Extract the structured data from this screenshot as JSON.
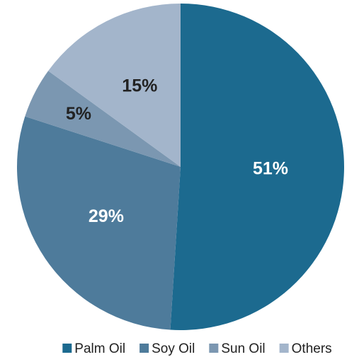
{
  "chart_data": {
    "type": "pie",
    "categories": [
      "Palm Oil",
      "Soy Oil",
      "Sun Oil",
      "Others"
    ],
    "values": [
      51,
      29,
      5,
      15
    ],
    "value_labels": [
      "51%",
      "29%",
      "5%",
      "15%"
    ],
    "colors": [
      "#1c6a8f",
      "#4e7b9b",
      "#7b97b1",
      "#a3b5cb"
    ],
    "label_colors": [
      "#ffffff",
      "#ffffff",
      "#222222",
      "#222222"
    ],
    "legend": "bottom"
  }
}
